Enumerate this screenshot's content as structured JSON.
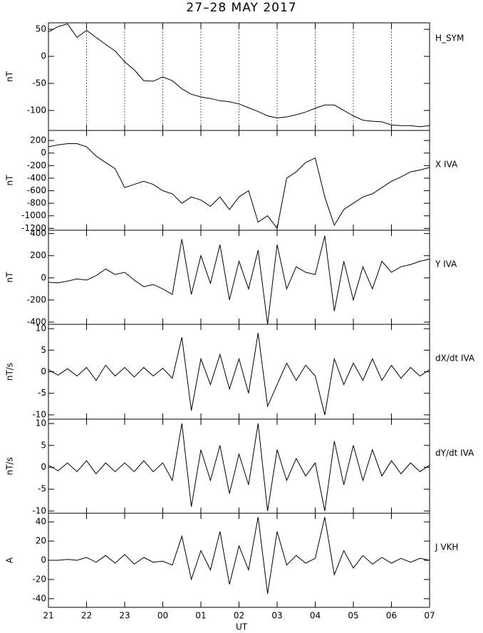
{
  "chart_data": [
    {
      "type": "line",
      "title": "27–28 MAY 2017",
      "ylabel": "nT",
      "grid": true,
      "x": [
        21,
        21.25,
        21.5,
        21.75,
        22,
        22.25,
        22.5,
        22.75,
        23,
        23.25,
        23.5,
        23.75,
        24,
        24.25,
        24.5,
        24.75,
        25,
        25.25,
        25.5,
        25.75,
        26,
        26.25,
        26.5,
        26.75,
        27,
        27.25,
        27.5,
        27.75,
        28,
        28.25,
        28.5,
        28.75,
        29,
        29.25,
        29.5,
        29.75,
        30,
        30.25,
        30.5,
        30.75,
        31
      ],
      "xlim": [
        21,
        31
      ],
      "ylim": [
        -137,
        62
      ],
      "yticks": [
        50,
        0,
        -50,
        -100
      ],
      "series": [
        {
          "name": "H_SYM",
          "color": "#000000",
          "values": [
            45,
            55,
            60,
            35,
            48,
            35,
            22,
            10,
            -10,
            -25,
            -45,
            -46,
            -38,
            -45,
            -60,
            -70,
            -75,
            -78,
            -82,
            -84,
            -88,
            -95,
            -102,
            -110,
            -114,
            -112,
            -108,
            -103,
            -96,
            -90,
            -90,
            -100,
            -110,
            -118,
            -120,
            -121,
            -127,
            -128,
            -128,
            -130,
            -128
          ]
        }
      ]
    },
    {
      "type": "line",
      "ylabel": "nT",
      "x": [
        21,
        21.25,
        21.5,
        21.75,
        22,
        22.25,
        22.5,
        22.75,
        23,
        23.25,
        23.5,
        23.75,
        24,
        24.25,
        24.5,
        24.75,
        25,
        25.25,
        25.5,
        25.75,
        26,
        26.25,
        26.5,
        26.75,
        27,
        27.25,
        27.5,
        27.75,
        28,
        28.25,
        28.5,
        28.75,
        29,
        29.25,
        29.5,
        29.75,
        30,
        30.25,
        30.5,
        30.75,
        31
      ],
      "xlim": [
        21,
        31
      ],
      "ylim": [
        -1230,
        360
      ],
      "yticks": [
        200,
        0,
        -200,
        -400,
        -600,
        -800,
        -1000,
        -1200
      ],
      "series": [
        {
          "name": "X IVA",
          "color": "#000000",
          "values": [
            100,
            130,
            150,
            150,
            100,
            -50,
            -150,
            -250,
            -550,
            -500,
            -450,
            -500,
            -600,
            -650,
            -800,
            -700,
            -750,
            -850,
            -700,
            -900,
            -700,
            -600,
            -1100,
            -1000,
            -1200,
            -400,
            -300,
            -150,
            -80,
            -700,
            -1150,
            -900,
            -800,
            -700,
            -650,
            -550,
            -450,
            -380,
            -300,
            -270,
            -230
          ]
        }
      ]
    },
    {
      "type": "line",
      "ylabel": "nT",
      "x": [
        21,
        21.25,
        21.5,
        21.75,
        22,
        22.25,
        22.5,
        22.75,
        23,
        23.25,
        23.5,
        23.75,
        24,
        24.25,
        24.5,
        24.75,
        25,
        25.25,
        25.5,
        25.75,
        26,
        26.25,
        26.5,
        26.75,
        27,
        27.25,
        27.5,
        27.75,
        28,
        28.25,
        28.5,
        28.75,
        29,
        29.25,
        29.5,
        29.75,
        30,
        30.25,
        30.5,
        30.75,
        31
      ],
      "xlim": [
        21,
        31
      ],
      "ylim": [
        -420,
        430
      ],
      "yticks": [
        400,
        200,
        0,
        -200,
        -400
      ],
      "series": [
        {
          "name": "Y IVA",
          "color": "#000000",
          "values": [
            -40,
            -45,
            -30,
            -10,
            -20,
            20,
            80,
            30,
            50,
            -20,
            -80,
            -60,
            -100,
            -150,
            350,
            -150,
            200,
            -50,
            300,
            -200,
            150,
            -100,
            250,
            -420,
            300,
            -100,
            100,
            50,
            30,
            380,
            -300,
            150,
            -200,
            100,
            -100,
            150,
            50,
            100,
            120,
            150,
            170
          ]
        }
      ]
    },
    {
      "type": "line",
      "ylabel": "nT/s",
      "x": [
        21,
        21.25,
        21.5,
        21.75,
        22,
        22.25,
        22.5,
        22.75,
        23,
        23.25,
        23.5,
        23.75,
        24,
        24.25,
        24.5,
        24.75,
        25,
        25.25,
        25.5,
        25.75,
        26,
        26.25,
        26.5,
        26.75,
        27,
        27.25,
        27.5,
        27.75,
        28,
        28.25,
        28.5,
        28.75,
        29,
        29.25,
        29.5,
        29.75,
        30,
        30.25,
        30.5,
        30.75,
        31
      ],
      "xlim": [
        21,
        31
      ],
      "ylim": [
        -11,
        11
      ],
      "yticks": [
        10,
        5,
        0,
        -5,
        -10
      ],
      "series": [
        {
          "name": "dX/dt IVA",
          "color": "#000000",
          "values": [
            0.5,
            -0.8,
            0.7,
            -1,
            1,
            -2,
            1.5,
            -1,
            1,
            -1.2,
            1,
            -1,
            0.8,
            -1.5,
            8,
            -9,
            3,
            -3,
            4,
            -4,
            3,
            -5,
            9,
            -8,
            -3,
            2,
            -2,
            1.5,
            -1,
            -10,
            3,
            -3,
            2,
            -2,
            3,
            -2,
            1.5,
            -1.5,
            1,
            -1,
            0.5
          ]
        }
      ]
    },
    {
      "type": "line",
      "ylabel": "nT/s",
      "x": [
        21,
        21.25,
        21.5,
        21.75,
        22,
        22.25,
        22.5,
        22.75,
        23,
        23.25,
        23.5,
        23.75,
        24,
        24.25,
        24.5,
        24.75,
        25,
        25.25,
        25.5,
        25.75,
        26,
        26.25,
        26.5,
        26.75,
        27,
        27.25,
        27.5,
        27.75,
        28,
        28.25,
        28.5,
        28.75,
        29,
        29.25,
        29.5,
        29.75,
        30,
        30.25,
        30.5,
        30.75,
        31
      ],
      "xlim": [
        21,
        31
      ],
      "ylim": [
        -10.5,
        11
      ],
      "yticks": [
        10,
        5,
        0,
        -5,
        -10
      ],
      "series": [
        {
          "name": "dY/dt IVA",
          "color": "#000000",
          "values": [
            0.5,
            -0.8,
            1,
            -1,
            1.5,
            -1.5,
            1,
            -1,
            1,
            -1,
            1.5,
            -1,
            1,
            -3,
            10,
            -9,
            4,
            -3,
            5,
            -6,
            3,
            -4,
            10,
            -10,
            4,
            -3,
            2,
            -2,
            1,
            -10,
            6,
            -4,
            5,
            -3,
            4,
            -2,
            1.5,
            -1.5,
            1,
            -1,
            0.5
          ]
        }
      ]
    },
    {
      "type": "line",
      "ylabel": "A",
      "xlabel": "UT",
      "x": [
        21,
        21.25,
        21.5,
        21.75,
        22,
        22.25,
        22.5,
        22.75,
        23,
        23.25,
        23.5,
        23.75,
        24,
        24.25,
        24.5,
        24.75,
        25,
        25.25,
        25.5,
        25.75,
        26,
        26.25,
        26.5,
        26.75,
        27,
        27.25,
        27.5,
        27.75,
        28,
        28.25,
        28.5,
        28.75,
        29,
        29.25,
        29.5,
        29.75,
        30,
        30.25,
        30.5,
        30.75,
        31
      ],
      "xlim": [
        21,
        31
      ],
      "ylim": [
        -49,
        49
      ],
      "yticks": [
        40,
        20,
        0,
        -20,
        -40
      ],
      "xticks": [
        21,
        22,
        23,
        {
          "value": 24,
          "label": "00"
        },
        {
          "value": 25,
          "label": "01"
        },
        {
          "value": 26,
          "label": "02"
        },
        {
          "value": 27,
          "label": "03"
        },
        {
          "value": 28,
          "label": "04"
        },
        {
          "value": 29,
          "label": "05"
        },
        {
          "value": 30,
          "label": "06"
        },
        {
          "value": 31,
          "label": "07"
        }
      ],
      "series": [
        {
          "name": "J VKH",
          "color": "#000000",
          "values": [
            0,
            0,
            1,
            0,
            3,
            -2,
            5,
            -3,
            6,
            -4,
            3,
            -2,
            -1,
            -5,
            25,
            -20,
            10,
            -10,
            30,
            -25,
            15,
            -10,
            45,
            -35,
            30,
            -5,
            5,
            -3,
            2,
            45,
            -15,
            10,
            -8,
            5,
            -4,
            3,
            -3,
            2,
            -2,
            2,
            0
          ]
        }
      ]
    }
  ]
}
